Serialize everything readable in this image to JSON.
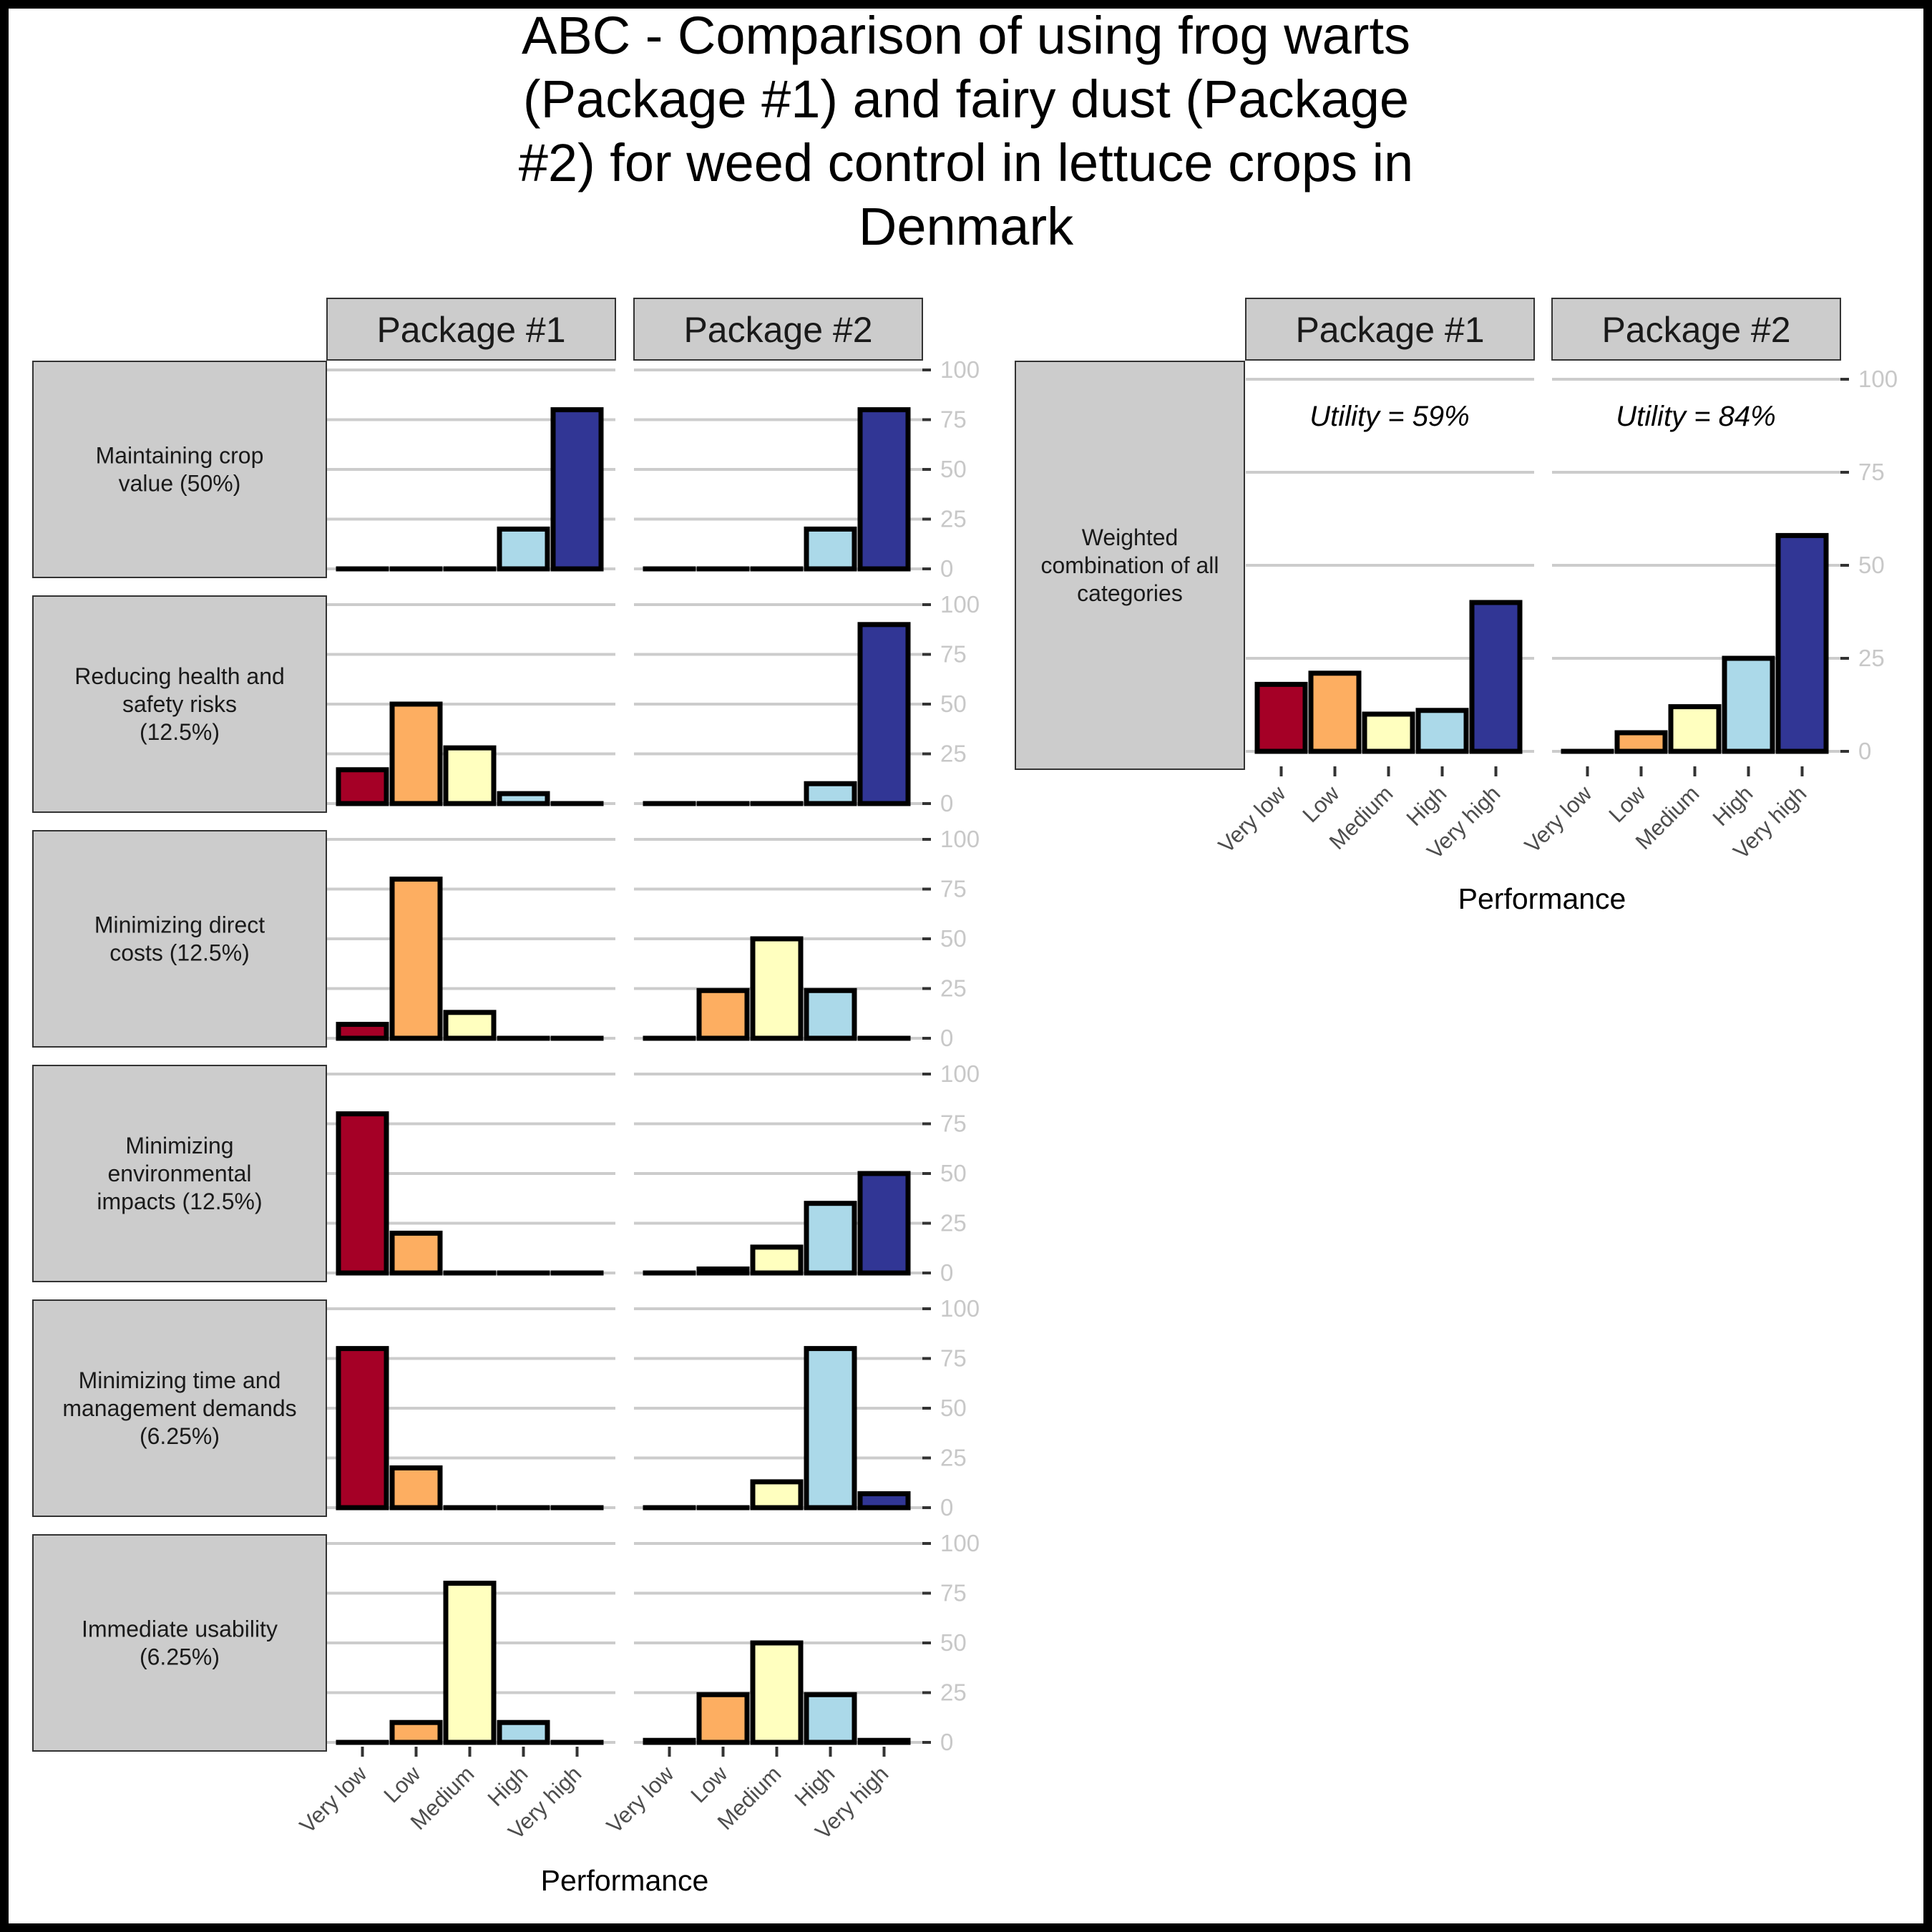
{
  "chart_data": {
    "type": "bar",
    "title": "ABC - Comparison of using frog warts (Package #1) and fairy dust (Package #2) for weed control in lettuce crops in Denmark",
    "title_lines": [
      "ABC - Comparison of using frog warts",
      "(Package #1) and fairy dust (Package",
      "#2) for weed control in lettuce crops in",
      "Denmark"
    ],
    "xlabel": "Performance",
    "categories": [
      "Very low",
      "Low",
      "Medium",
      "High",
      "Very high"
    ],
    "category_colors": [
      "#a50026",
      "#fdae61",
      "#ffffbf",
      "#abd9e9",
      "#313695"
    ],
    "packages": [
      "Package #1",
      "Package #2"
    ],
    "ylim": [
      0,
      100
    ],
    "y_ticks": [
      "0",
      "25",
      "50",
      "75",
      "100"
    ],
    "grid": "horizontal",
    "criteria": [
      {
        "label_lines": [
          "Maintaining crop",
          "value (50%)"
        ],
        "series": [
          {
            "name": "Package #1",
            "values": [
              0,
              0,
              0,
              20,
              80
            ]
          },
          {
            "name": "Package #2",
            "values": [
              0,
              0,
              0,
              20,
              80
            ]
          }
        ]
      },
      {
        "label_lines": [
          "Reducing health and",
          "safety risks",
          "(12.5%)"
        ],
        "series": [
          {
            "name": "Package #1",
            "values": [
              17,
              50,
              28,
              5,
              0
            ]
          },
          {
            "name": "Package #2",
            "values": [
              0,
              0,
              0,
              10,
              90
            ]
          }
        ]
      },
      {
        "label_lines": [
          "Minimizing direct",
          "costs (12.5%)"
        ],
        "series": [
          {
            "name": "Package #1",
            "values": [
              7,
              80,
              13,
              0,
              0
            ]
          },
          {
            "name": "Package #2",
            "values": [
              0,
              24,
              50,
              24,
              0
            ]
          }
        ]
      },
      {
        "label_lines": [
          "Minimizing",
          "environmental",
          "impacts (12.5%)"
        ],
        "series": [
          {
            "name": "Package #1",
            "values": [
              80,
              20,
              0,
              0,
              0
            ]
          },
          {
            "name": "Package #2",
            "values": [
              0,
              2,
              13,
              35,
              50
            ]
          }
        ]
      },
      {
        "label_lines": [
          "Minimizing time and",
          "management demands",
          "(6.25%)"
        ],
        "series": [
          {
            "name": "Package #1",
            "values": [
              80,
              20,
              0,
              0,
              0
            ]
          },
          {
            "name": "Package #2",
            "values": [
              0,
              0,
              13,
              80,
              7
            ]
          }
        ]
      },
      {
        "label_lines": [
          "Immediate usability",
          "(6.25%)"
        ],
        "series": [
          {
            "name": "Package #1",
            "values": [
              0,
              10,
              80,
              10,
              0
            ]
          },
          {
            "name": "Package #2",
            "values": [
              1,
              24,
              50,
              24,
              1
            ]
          }
        ]
      }
    ],
    "weighted": {
      "label_lines": [
        "Weighted",
        "combination of all",
        "categories"
      ],
      "series": [
        {
          "name": "Package #1",
          "values": [
            18,
            21,
            10,
            11,
            40
          ],
          "utility": "Utility = 59%"
        },
        {
          "name": "Package #2",
          "values": [
            0,
            5,
            12,
            25,
            58
          ],
          "utility": "Utility = 84%"
        }
      ]
    }
  }
}
